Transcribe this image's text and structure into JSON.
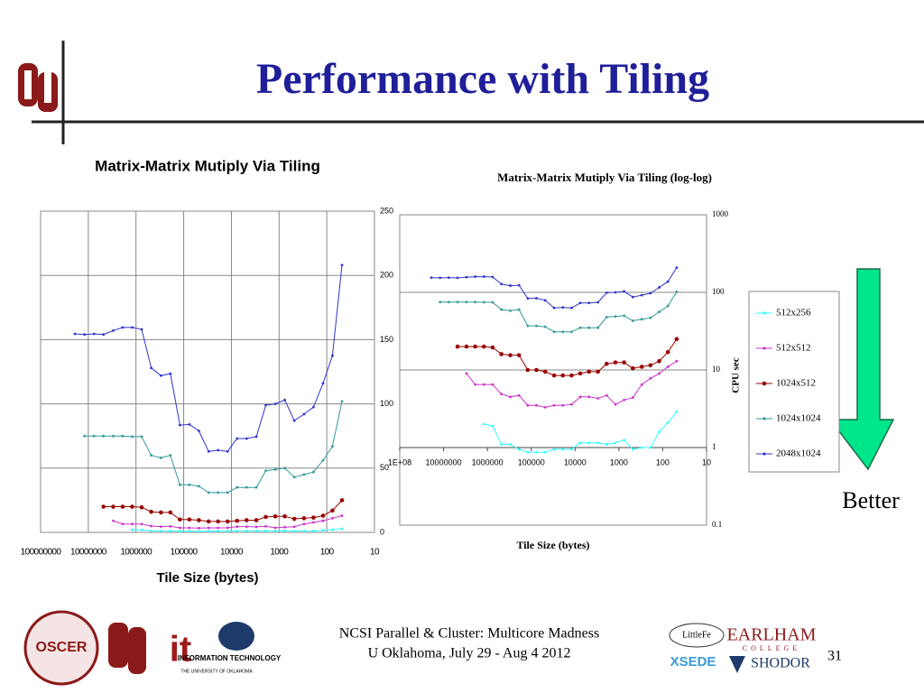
{
  "title": "Performance with Tiling",
  "better": "Better",
  "footer": {
    "line1": "NCSI Parallel & Cluster: Multicore Madness",
    "line2": "U Oklahoma, July 29 - Aug 4 2012"
  },
  "page_number": "31",
  "logos": {
    "oscer": "OSCER",
    "it": "it",
    "it_caption": "INFORMATION TECHNOLOGY",
    "it_sub": "THE UNIVERSITY OF OKLAHOMA",
    "littlefe": "LittleFe",
    "earlham": "EARLHAM",
    "college": "COLLEGE",
    "xsede": "XSEDE",
    "shodor": "SHODOR"
  },
  "chart_data": [
    {
      "type": "line",
      "title": "Matrix-Matrix Mutiply Via Tiling",
      "x_label": "Tile Size (bytes)",
      "xlog": true,
      "xlim": [
        100000000,
        10
      ],
      "xticks": [
        100000000,
        10000000,
        1000000,
        100000,
        10000,
        1000,
        100,
        10
      ],
      "ylim": [
        0,
        250
      ],
      "yticks": [
        0,
        50,
        100,
        150,
        200,
        250
      ],
      "y_axis_side": "right",
      "grid": true,
      "data_from": "chart_data.1"
    },
    {
      "type": "line",
      "title": "Matrix-Matrix Mutiply Via Tiling (log-log)",
      "x_label": "Tile Size (bytes)",
      "y_label": "CPU sec",
      "xlog": true,
      "ylog": true,
      "xlim": [
        100000000,
        10
      ],
      "ylim": [
        0.1,
        1000
      ],
      "xticks": [
        {
          "value": 100000000,
          "label": "1E+08"
        },
        10000000,
        1000000,
        100000,
        10000,
        1000,
        100,
        10
      ],
      "yticks": [
        0.1,
        1,
        10,
        100,
        1000
      ],
      "y_axis_side": "right",
      "x_axis_crosses": 1,
      "grid": true,
      "legend": "right",
      "x": [
        19000000,
        12000000,
        7600000,
        4800000,
        3000000,
        1900000,
        1200000,
        760000,
        480000,
        300000,
        190000,
        120000,
        76000,
        48000,
        30000,
        19000,
        12000,
        7600,
        4800,
        3000,
        1900,
        1200,
        760,
        480,
        300,
        190,
        120,
        76,
        48
      ],
      "series": [
        {
          "name": "512x256",
          "color": "#33ffff",
          "values": [
            null,
            null,
            null,
            null,
            null,
            null,
            2.0,
            1.9,
            1.1,
            1.1,
            0.95,
            0.87,
            0.87,
            0.87,
            0.95,
            0.95,
            0.95,
            1.15,
            1.15,
            1.15,
            1.1,
            1.15,
            1.25,
            0.95,
            1.0,
            1.0,
            1.6,
            2.1,
            2.9
          ]
        },
        {
          "name": "512x512",
          "color": "#cc33cc",
          "values": [
            null,
            null,
            null,
            null,
            9,
            6.5,
            6.5,
            6.5,
            4.9,
            4.5,
            4.7,
            3.5,
            3.5,
            3.3,
            3.5,
            3.5,
            3.6,
            4.5,
            4.5,
            4.3,
            4.7,
            3.6,
            4.1,
            4.4,
            6.5,
            7.8,
            9,
            11,
            13
          ]
        },
        {
          "name": "1024x512",
          "color": "#990000",
          "values": [
            null,
            null,
            null,
            20,
            20,
            20,
            20,
            19.5,
            16,
            15.5,
            15.5,
            10,
            10,
            9.5,
            8.5,
            8.5,
            8.5,
            9,
            9.5,
            9.5,
            12,
            12.5,
            12.5,
            10.5,
            11,
            11.5,
            13,
            17,
            25
          ]
        },
        {
          "name": "1024x1024",
          "color": "#339999",
          "values": [
            null,
            75,
            75,
            75,
            75,
            75,
            74.5,
            74.5,
            60,
            58,
            60,
            37,
            37,
            36,
            31,
            31,
            31,
            35,
            35,
            35,
            48,
            49,
            50,
            43,
            45,
            47,
            56,
            67,
            102
          ]
        },
        {
          "name": "2048x1024",
          "color": "#3333cc",
          "values": [
            154.5,
            154,
            154.5,
            154,
            157,
            159.5,
            159.5,
            158,
            128,
            122,
            123.5,
            83.5,
            84,
            79,
            63,
            64,
            63,
            73,
            73,
            74.5,
            99,
            100,
            103,
            87,
            92,
            97.5,
            116,
            137.5,
            208
          ]
        }
      ]
    }
  ]
}
